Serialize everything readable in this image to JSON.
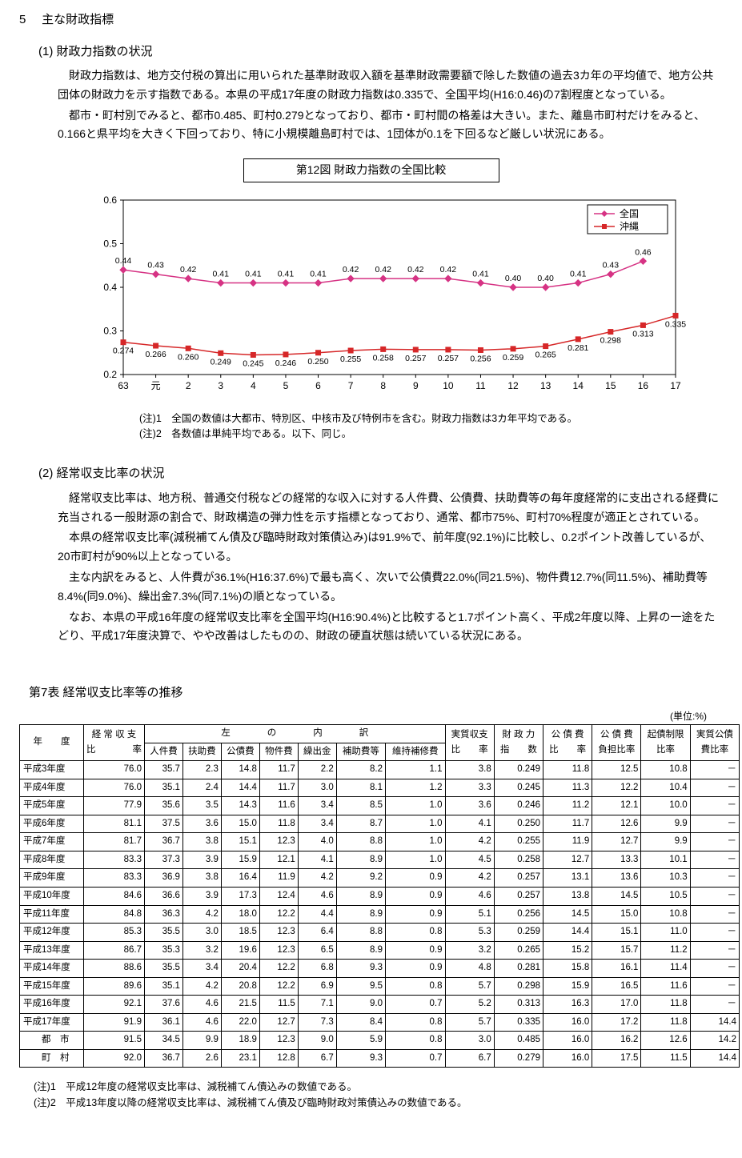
{
  "section_number": "5",
  "section_title": "主な財政指標",
  "sub1": {
    "num": "(1)",
    "title": "財政力指数の状況",
    "paras": [
      "財政力指数は、地方交付税の算出に用いられた基準財政収入額を基準財政需要額で除した数値の過去3カ年の平均値で、地方公共団体の財政力を示す指数である。本県の平成17年度の財政力指数は0.335で、全国平均(H16:0.46)の7割程度となっている。",
      "都市・町村別でみると、都市0.485、町村0.279となっており、都市・町村間の格差は大きい。また、離島市町村だけをみると、0.166と県平均を大きく下回っており、特に小規模離島町村では、1団体が0.1を下回るなど厳しい状況にある。"
    ]
  },
  "figure12": {
    "title": "第12図 財政力指数の全国比較",
    "legend": {
      "s1": "全国",
      "s2": "沖縄"
    },
    "colors": {
      "s1": "#d63384",
      "s2": "#d62728",
      "grid": "#666",
      "bg": "#ffffff"
    },
    "x_labels": [
      "63",
      "元",
      "2",
      "3",
      "4",
      "5",
      "6",
      "7",
      "8",
      "9",
      "10",
      "11",
      "12",
      "13",
      "14",
      "15",
      "16",
      "17"
    ],
    "ylim": [
      0.2,
      0.6
    ],
    "ytick_step": 0.1,
    "series1": [
      0.44,
      0.43,
      0.42,
      0.41,
      0.41,
      0.41,
      0.41,
      0.42,
      0.42,
      0.42,
      0.42,
      0.41,
      0.4,
      0.4,
      0.41,
      0.43,
      0.46,
      null
    ],
    "series1_labels": [
      "0.44",
      "0.43",
      "0.42",
      "0.41",
      "0.41",
      "0.41",
      "0.41",
      "0.42",
      "0.42",
      "0.42",
      "0.42",
      "0.41",
      "0.40",
      "0.40",
      "0.41",
      "0.43",
      "0.46",
      ""
    ],
    "series2": [
      0.274,
      0.266,
      0.26,
      0.249,
      0.245,
      0.246,
      0.25,
      0.255,
      0.258,
      0.257,
      0.257,
      0.256,
      0.259,
      0.265,
      0.281,
      0.298,
      0.313,
      0.335
    ],
    "series2_labels": [
      "0.274",
      "0.266",
      "0.260",
      "0.249",
      "0.245",
      "0.246",
      "0.250",
      "0.255",
      "0.258",
      "0.257",
      "0.257",
      "0.256",
      "0.259",
      "0.265",
      "0.281",
      "0.298",
      "0.313",
      "0.335"
    ],
    "notes": [
      "(注)1　全国の数値は大都市、特別区、中核市及び特例市を含む。財政力指数は3カ年平均である。",
      "(注)2　各数値は単純平均である。以下、同じ。"
    ]
  },
  "sub2": {
    "num": "(2)",
    "title": "経常収支比率の状況",
    "paras": [
      "経常収支比率は、地方税、普通交付税などの経常的な収入に対する人件費、公債費、扶助費等の毎年度経常的に支出される経費に充当される一般財源の割合で、財政構造の弾力性を示す指標となっており、通常、都市75%、町村70%程度が適正とされている。",
      "本県の経常収支比率(減税補てん債及び臨時財政対策債込み)は91.9%で、前年度(92.1%)に比較し、0.2ポイント改善しているが、20市町村が90%以上となっている。",
      "主な内訳をみると、人件費が36.1%(H16:37.6%)で最も高く、次いで公債費22.0%(同21.5%)、物件費12.7%(同11.5%)、補助費等8.4%(同9.0%)、繰出金7.3%(同7.1%)の順となっている。",
      "なお、本県の平成16年度の経常収支比率を全国平均(H16:90.4%)と比較すると1.7ポイント高く、平成2年度以降、上昇の一途をたどり、平成17年度決算で、やや改善はしたものの、財政の硬直状態は続いている状況にある。"
    ]
  },
  "table7": {
    "title": "第7表 経常収支比率等の推移",
    "unit": "(単位:%)",
    "group_headers": {
      "year": "年　　度",
      "keijo": "経 常 収 支\n比　　　　率",
      "uchiwake": "左　　　　の　　　　内　　　　訳",
      "jisshitsu": "実質収支\n比　　率",
      "zaisei": "財 政 力\n指　　数",
      "kousai": "公 債 費\n比　　率",
      "kousaihutan": "公 債 費\n負担比率",
      "kisai": "起債制限\n比率",
      "jkousai": "実質公債\n費比率"
    },
    "sub_headers": [
      "人件費",
      "扶助費",
      "公債費",
      "物件費",
      "繰出金",
      "補助費等",
      "維持補修費"
    ],
    "rows": [
      {
        "y": "平成3年度",
        "v": [
          "76.0",
          "35.7",
          "2.3",
          "14.8",
          "11.7",
          "2.2",
          "8.2",
          "1.1",
          "3.8",
          "0.249",
          "11.8",
          "12.5",
          "10.8",
          "－"
        ]
      },
      {
        "y": "平成4年度",
        "v": [
          "76.0",
          "35.1",
          "2.4",
          "14.4",
          "11.7",
          "3.0",
          "8.1",
          "1.2",
          "3.3",
          "0.245",
          "11.3",
          "12.2",
          "10.4",
          "－"
        ]
      },
      {
        "y": "平成5年度",
        "v": [
          "77.9",
          "35.6",
          "3.5",
          "14.3",
          "11.6",
          "3.4",
          "8.5",
          "1.0",
          "3.6",
          "0.246",
          "11.2",
          "12.1",
          "10.0",
          "－"
        ]
      },
      {
        "y": "平成6年度",
        "v": [
          "81.1",
          "37.5",
          "3.6",
          "15.0",
          "11.8",
          "3.4",
          "8.7",
          "1.0",
          "4.1",
          "0.250",
          "11.7",
          "12.6",
          "9.9",
          "－"
        ]
      },
      {
        "y": "平成7年度",
        "v": [
          "81.7",
          "36.7",
          "3.8",
          "15.1",
          "12.3",
          "4.0",
          "8.8",
          "1.0",
          "4.2",
          "0.255",
          "11.9",
          "12.7",
          "9.9",
          "－"
        ]
      },
      {
        "y": "平成8年度",
        "v": [
          "83.3",
          "37.3",
          "3.9",
          "15.9",
          "12.1",
          "4.1",
          "8.9",
          "1.0",
          "4.5",
          "0.258",
          "12.7",
          "13.3",
          "10.1",
          "－"
        ]
      },
      {
        "y": "平成9年度",
        "v": [
          "83.3",
          "36.9",
          "3.8",
          "16.4",
          "11.9",
          "4.2",
          "9.2",
          "0.9",
          "4.2",
          "0.257",
          "13.1",
          "13.6",
          "10.3",
          "－"
        ]
      },
      {
        "y": "平成10年度",
        "v": [
          "84.6",
          "36.6",
          "3.9",
          "17.3",
          "12.4",
          "4.6",
          "8.9",
          "0.9",
          "4.6",
          "0.257",
          "13.8",
          "14.5",
          "10.5",
          "－"
        ]
      },
      {
        "y": "平成11年度",
        "v": [
          "84.8",
          "36.3",
          "4.2",
          "18.0",
          "12.2",
          "4.4",
          "8.9",
          "0.9",
          "5.1",
          "0.256",
          "14.5",
          "15.0",
          "10.8",
          "－"
        ]
      },
      {
        "y": "平成12年度",
        "v": [
          "85.3",
          "35.5",
          "3.0",
          "18.5",
          "12.3",
          "6.4",
          "8.8",
          "0.8",
          "5.3",
          "0.259",
          "14.4",
          "15.1",
          "11.0",
          "－"
        ]
      },
      {
        "y": "平成13年度",
        "v": [
          "86.7",
          "35.3",
          "3.2",
          "19.6",
          "12.3",
          "6.5",
          "8.9",
          "0.9",
          "3.2",
          "0.265",
          "15.2",
          "15.7",
          "11.2",
          "－"
        ]
      },
      {
        "y": "平成14年度",
        "v": [
          "88.6",
          "35.5",
          "3.4",
          "20.4",
          "12.2",
          "6.8",
          "9.3",
          "0.9",
          "4.8",
          "0.281",
          "15.8",
          "16.1",
          "11.4",
          "－"
        ]
      },
      {
        "y": "平成15年度",
        "v": [
          "89.6",
          "35.1",
          "4.2",
          "20.8",
          "12.2",
          "6.9",
          "9.5",
          "0.8",
          "5.7",
          "0.298",
          "15.9",
          "16.5",
          "11.6",
          "－"
        ]
      },
      {
        "y": "平成16年度",
        "v": [
          "92.1",
          "37.6",
          "4.6",
          "21.5",
          "11.5",
          "7.1",
          "9.0",
          "0.7",
          "5.2",
          "0.313",
          "16.3",
          "17.0",
          "11.8",
          "－"
        ]
      },
      {
        "y": "平成17年度",
        "v": [
          "91.9",
          "36.1",
          "4.6",
          "22.0",
          "12.7",
          "7.3",
          "8.4",
          "0.8",
          "5.7",
          "0.335",
          "16.0",
          "17.2",
          "11.8",
          "14.4"
        ]
      },
      {
        "y": "　　都　市",
        "v": [
          "91.5",
          "34.5",
          "9.9",
          "18.9",
          "12.3",
          "9.0",
          "5.9",
          "0.8",
          "3.0",
          "0.485",
          "16.0",
          "16.2",
          "12.6",
          "14.2"
        ]
      },
      {
        "y": "　　町　村",
        "v": [
          "92.0",
          "36.7",
          "2.6",
          "23.1",
          "12.8",
          "6.7",
          "9.3",
          "0.7",
          "6.7",
          "0.279",
          "16.0",
          "17.5",
          "11.5",
          "14.4"
        ]
      }
    ],
    "notes": [
      "(注)1　平成12年度の経常収支比率は、減税補てん債込みの数値である。",
      "(注)2　平成13年度以降の経常収支比率は、減税補てん債及び臨時財政対策債込みの数値である。"
    ]
  }
}
